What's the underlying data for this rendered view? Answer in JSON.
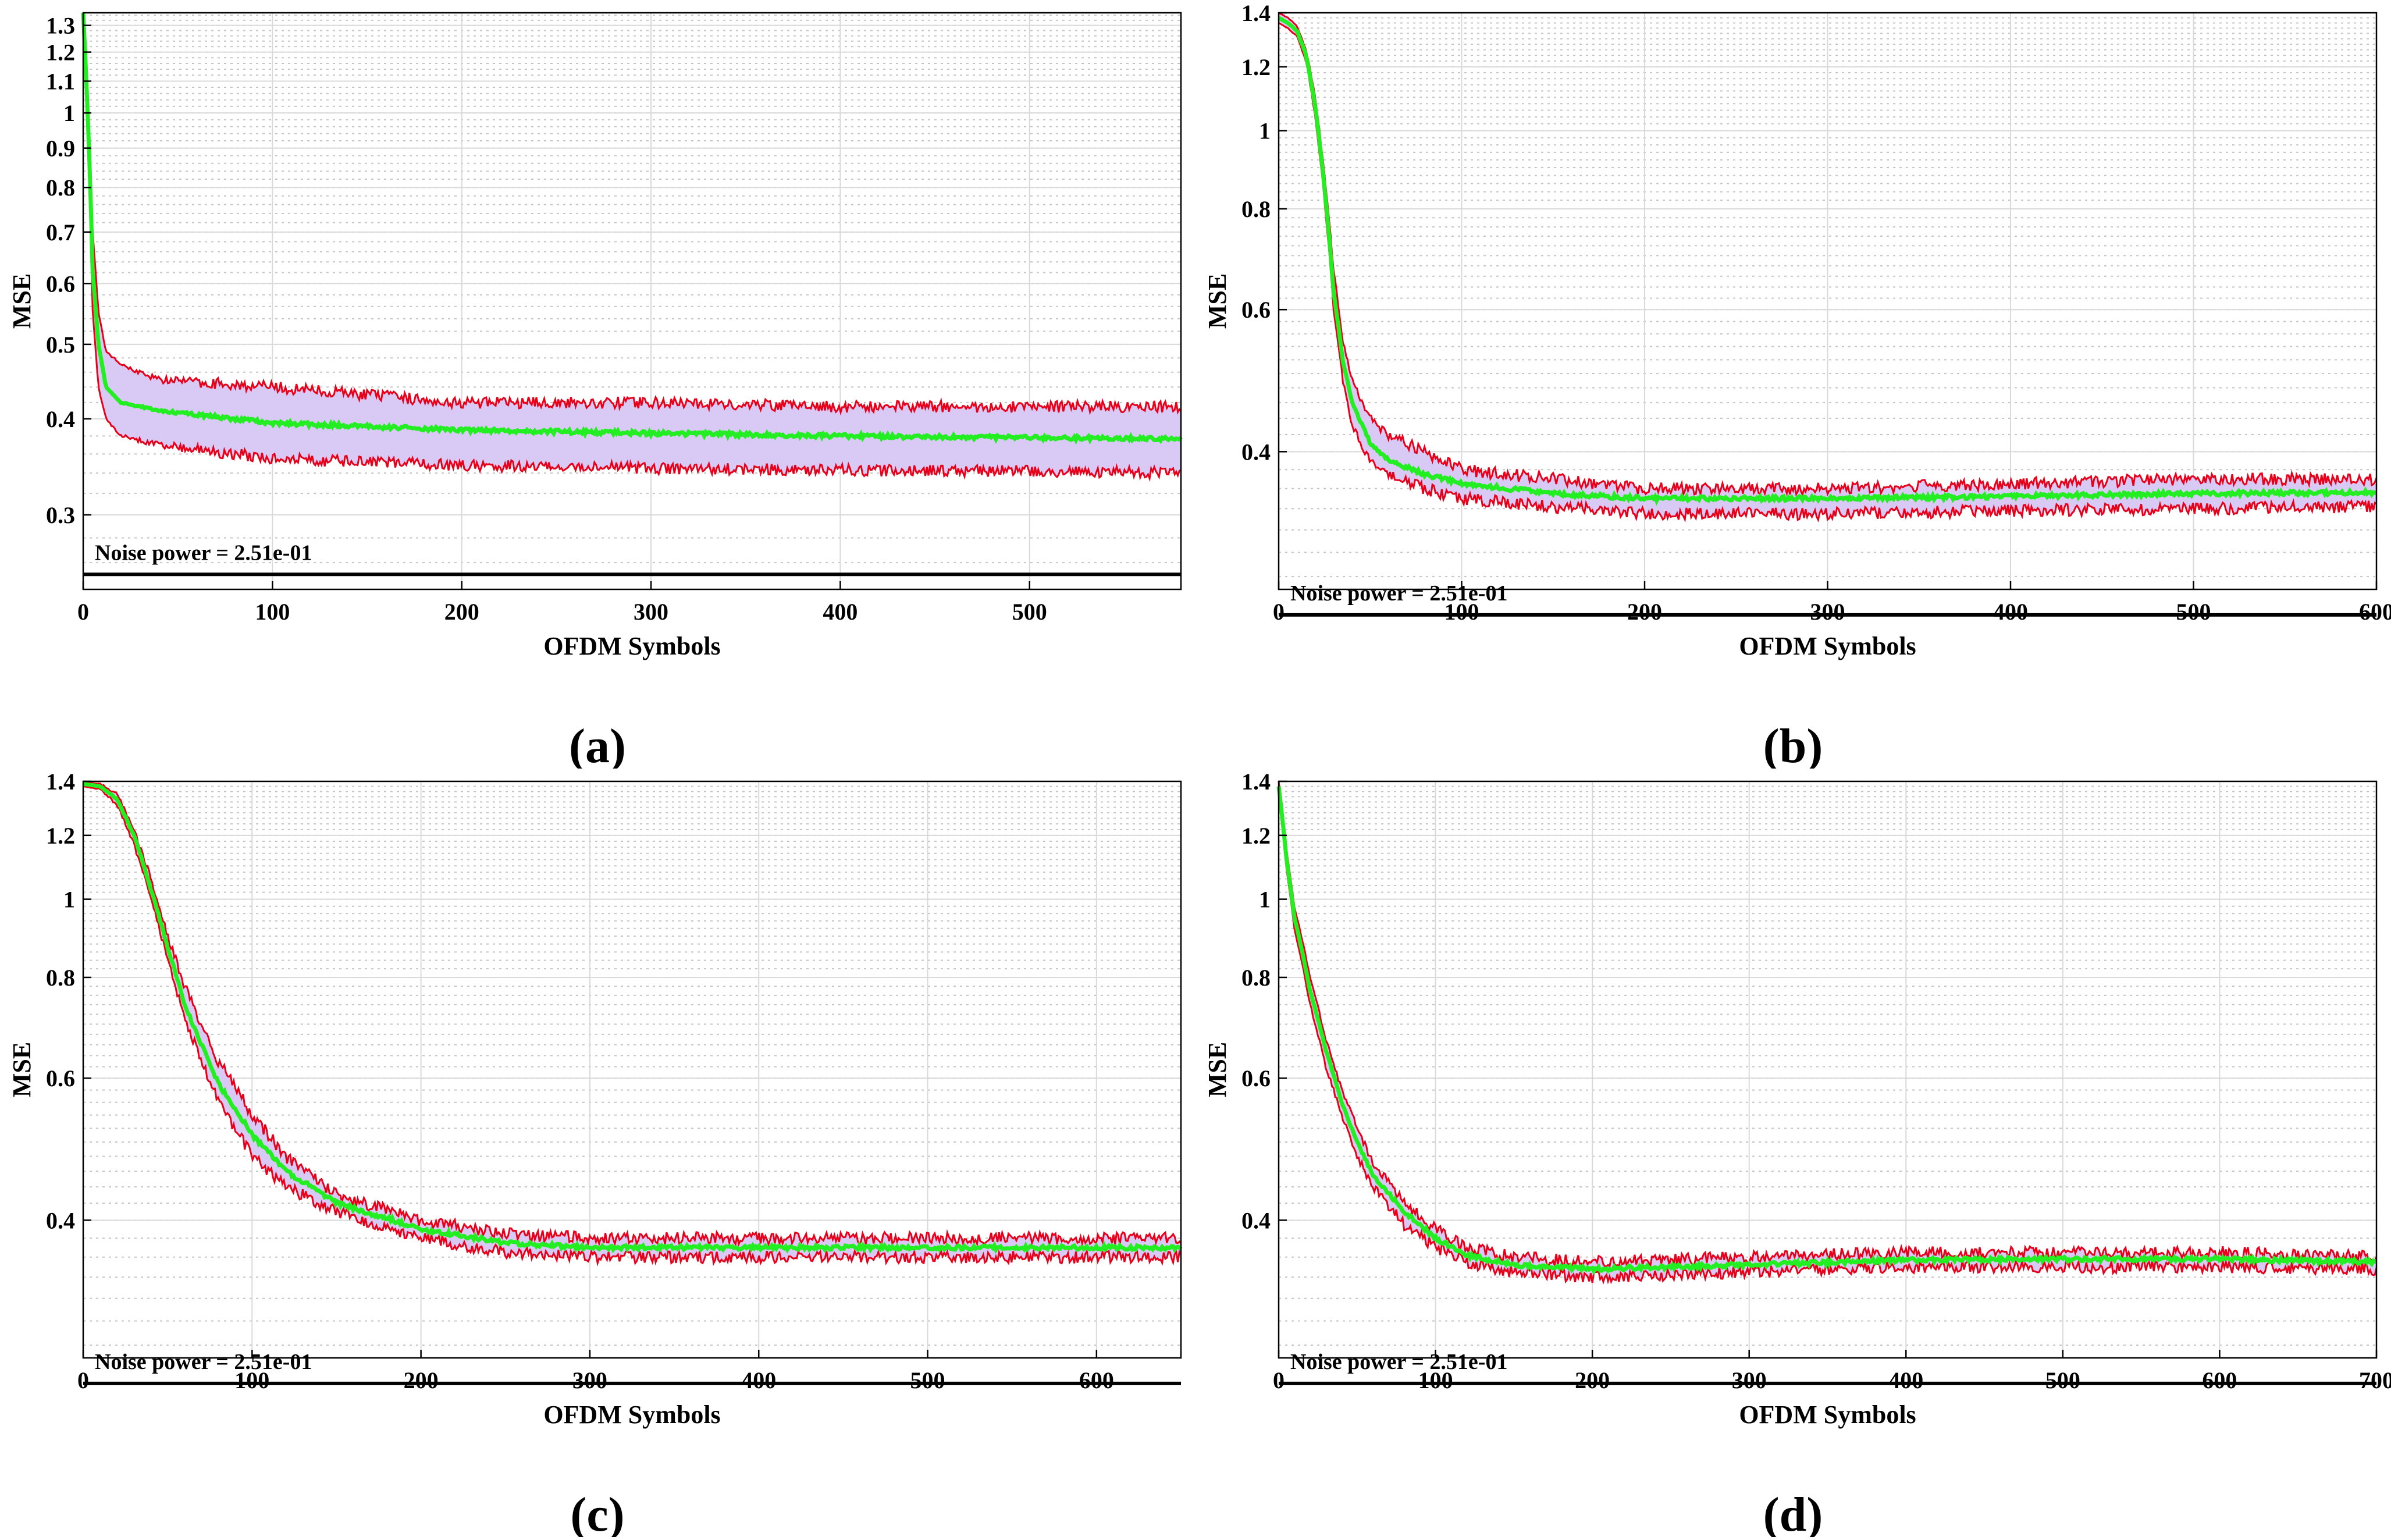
{
  "colors": {
    "mean_line": "#22ee22",
    "bound_line": "#e8001a",
    "band_fill": "#d9c9f5",
    "noise_line": "#000000",
    "grid_major": "#d9d9d9",
    "grid_minor": "#c4c4c4"
  },
  "chart_data": [
    {
      "panel": "(a)",
      "type": "line",
      "xlabel": "OFDM Symbols",
      "ylabel": "MSE",
      "yscale": "log",
      "xlim": [
        0,
        580
      ],
      "ylim": [
        0.24,
        1.35
      ],
      "xticks": [
        0,
        100,
        200,
        300,
        400,
        500
      ],
      "yticks": [
        0.3,
        0.4,
        0.5,
        0.6,
        0.7,
        0.8,
        0.9,
        1,
        1.1,
        1.2,
        1.3
      ],
      "annotation": "Noise power = 2.51e-01",
      "noise_power": 0.251,
      "series": [
        {
          "name": "upper bound",
          "x": [
            0,
            2,
            5,
            8,
            12,
            20,
            40,
            100,
            200,
            300,
            400,
            500,
            580
          ],
          "values": [
            1.35,
            1.1,
            0.7,
            0.55,
            0.49,
            0.47,
            0.45,
            0.44,
            0.42,
            0.42,
            0.415,
            0.415,
            0.415
          ]
        },
        {
          "name": "mean",
          "x": [
            0,
            2,
            5,
            8,
            12,
            20,
            40,
            100,
            200,
            300,
            400,
            500,
            580
          ],
          "values": [
            1.35,
            1.05,
            0.62,
            0.5,
            0.44,
            0.42,
            0.41,
            0.395,
            0.387,
            0.383,
            0.38,
            0.378,
            0.377
          ]
        },
        {
          "name": "lower bound",
          "x": [
            0,
            2,
            5,
            8,
            12,
            20,
            40,
            100,
            200,
            300,
            400,
            500,
            580
          ],
          "values": [
            1.35,
            0.98,
            0.55,
            0.44,
            0.4,
            0.38,
            0.37,
            0.355,
            0.348,
            0.345,
            0.343,
            0.342,
            0.34
          ]
        }
      ]
    },
    {
      "panel": "(b)",
      "type": "line",
      "xlabel": "OFDM Symbols",
      "ylabel": "MSE",
      "yscale": "log",
      "xlim": [
        0,
        600
      ],
      "ylim": [
        0.27,
        1.4
      ],
      "xticks": [
        0,
        100,
        200,
        300,
        400,
        500,
        600
      ],
      "yticks": [
        0.4,
        0.6,
        0.8,
        1,
        1.2,
        1.4
      ],
      "annotation": "Noise power = 2.51e-01",
      "noise_power": 0.251,
      "series": [
        {
          "name": "upper bound",
          "x": [
            0,
            5,
            10,
            15,
            20,
            25,
            30,
            35,
            40,
            50,
            60,
            80,
            100,
            150,
            200,
            300,
            400,
            500,
            600
          ],
          "values": [
            1.4,
            1.38,
            1.35,
            1.26,
            1.1,
            0.88,
            0.67,
            0.55,
            0.49,
            0.44,
            0.42,
            0.4,
            0.38,
            0.37,
            0.36,
            0.36,
            0.365,
            0.37,
            0.37
          ]
        },
        {
          "name": "mean",
          "x": [
            0,
            5,
            10,
            15,
            20,
            25,
            30,
            35,
            40,
            50,
            60,
            80,
            100,
            150,
            200,
            300,
            400,
            500,
            600
          ],
          "values": [
            1.38,
            1.36,
            1.33,
            1.24,
            1.07,
            0.85,
            0.63,
            0.52,
            0.46,
            0.41,
            0.39,
            0.375,
            0.365,
            0.355,
            0.35,
            0.35,
            0.352,
            0.355,
            0.356
          ]
        },
        {
          "name": "lower bound",
          "x": [
            0,
            5,
            10,
            15,
            20,
            25,
            30,
            35,
            40,
            50,
            60,
            80,
            100,
            150,
            200,
            300,
            400,
            500,
            600
          ],
          "values": [
            1.36,
            1.34,
            1.31,
            1.22,
            1.04,
            0.82,
            0.6,
            0.49,
            0.43,
            0.39,
            0.375,
            0.36,
            0.35,
            0.342,
            0.335,
            0.335,
            0.338,
            0.34,
            0.342
          ]
        }
      ]
    },
    {
      "panel": "(c)",
      "type": "line",
      "xlabel": "OFDM Symbols",
      "ylabel": "MSE",
      "yscale": "log",
      "xlim": [
        0,
        650
      ],
      "ylim": [
        0.27,
        1.4
      ],
      "xticks": [
        0,
        100,
        200,
        300,
        400,
        500,
        600
      ],
      "yticks": [
        0.4,
        0.6,
        0.8,
        1,
        1.2,
        1.4
      ],
      "annotation": "Noise power = 2.51e-01",
      "noise_power": 0.251,
      "series": [
        {
          "name": "upper bound",
          "x": [
            0,
            10,
            20,
            30,
            40,
            50,
            60,
            70,
            80,
            100,
            120,
            150,
            200,
            250,
            300,
            400,
            500,
            600,
            650
          ],
          "values": [
            1.4,
            1.39,
            1.35,
            1.22,
            1.06,
            0.9,
            0.78,
            0.7,
            0.63,
            0.54,
            0.48,
            0.43,
            0.4,
            0.385,
            0.38,
            0.38,
            0.38,
            0.38,
            0.38
          ]
        },
        {
          "name": "mean",
          "x": [
            0,
            10,
            20,
            30,
            40,
            50,
            60,
            70,
            80,
            100,
            120,
            150,
            200,
            250,
            300,
            400,
            500,
            600,
            650
          ],
          "values": [
            1.39,
            1.38,
            1.33,
            1.2,
            1.03,
            0.87,
            0.74,
            0.66,
            0.59,
            0.51,
            0.46,
            0.42,
            0.39,
            0.375,
            0.37,
            0.37,
            0.37,
            0.37,
            0.37
          ]
        },
        {
          "name": "lower bound",
          "x": [
            0,
            10,
            20,
            30,
            40,
            50,
            60,
            70,
            80,
            100,
            120,
            150,
            200,
            250,
            300,
            400,
            500,
            600,
            650
          ],
          "values": [
            1.38,
            1.37,
            1.31,
            1.17,
            1.0,
            0.84,
            0.71,
            0.63,
            0.56,
            0.48,
            0.44,
            0.41,
            0.38,
            0.365,
            0.36,
            0.36,
            0.36,
            0.36,
            0.36
          ]
        }
      ]
    },
    {
      "panel": "(d)",
      "type": "line",
      "xlabel": "OFDM Symbols",
      "ylabel": "MSE",
      "yscale": "log",
      "xlim": [
        0,
        700
      ],
      "ylim": [
        0.27,
        1.4
      ],
      "xticks": [
        0,
        100,
        200,
        300,
        400,
        500,
        600,
        700
      ],
      "yticks": [
        0.4,
        0.6,
        0.8,
        1,
        1.2,
        1.4
      ],
      "annotation": "Noise power = 2.51e-01",
      "noise_power": 0.251,
      "series": [
        {
          "name": "upper bound",
          "x": [
            0,
            5,
            10,
            20,
            30,
            40,
            50,
            60,
            80,
            100,
            120,
            150,
            200,
            300,
            400,
            500,
            600,
            700
          ],
          "values": [
            1.4,
            1.15,
            0.98,
            0.8,
            0.67,
            0.58,
            0.52,
            0.47,
            0.42,
            0.39,
            0.37,
            0.36,
            0.355,
            0.36,
            0.365,
            0.365,
            0.365,
            0.36
          ]
        },
        {
          "name": "mean",
          "x": [
            0,
            5,
            10,
            20,
            30,
            40,
            50,
            60,
            80,
            100,
            120,
            150,
            200,
            300,
            400,
            500,
            600,
            700
          ],
          "values": [
            1.38,
            1.12,
            0.95,
            0.77,
            0.65,
            0.56,
            0.5,
            0.455,
            0.41,
            0.38,
            0.362,
            0.352,
            0.348,
            0.352,
            0.357,
            0.358,
            0.358,
            0.355
          ]
        },
        {
          "name": "lower bound",
          "x": [
            0,
            5,
            10,
            20,
            30,
            40,
            50,
            60,
            80,
            100,
            120,
            150,
            200,
            300,
            400,
            500,
            600,
            700
          ],
          "values": [
            1.36,
            1.09,
            0.92,
            0.74,
            0.62,
            0.54,
            0.48,
            0.44,
            0.395,
            0.37,
            0.355,
            0.345,
            0.34,
            0.345,
            0.35,
            0.35,
            0.35,
            0.348
          ]
        }
      ]
    }
  ]
}
